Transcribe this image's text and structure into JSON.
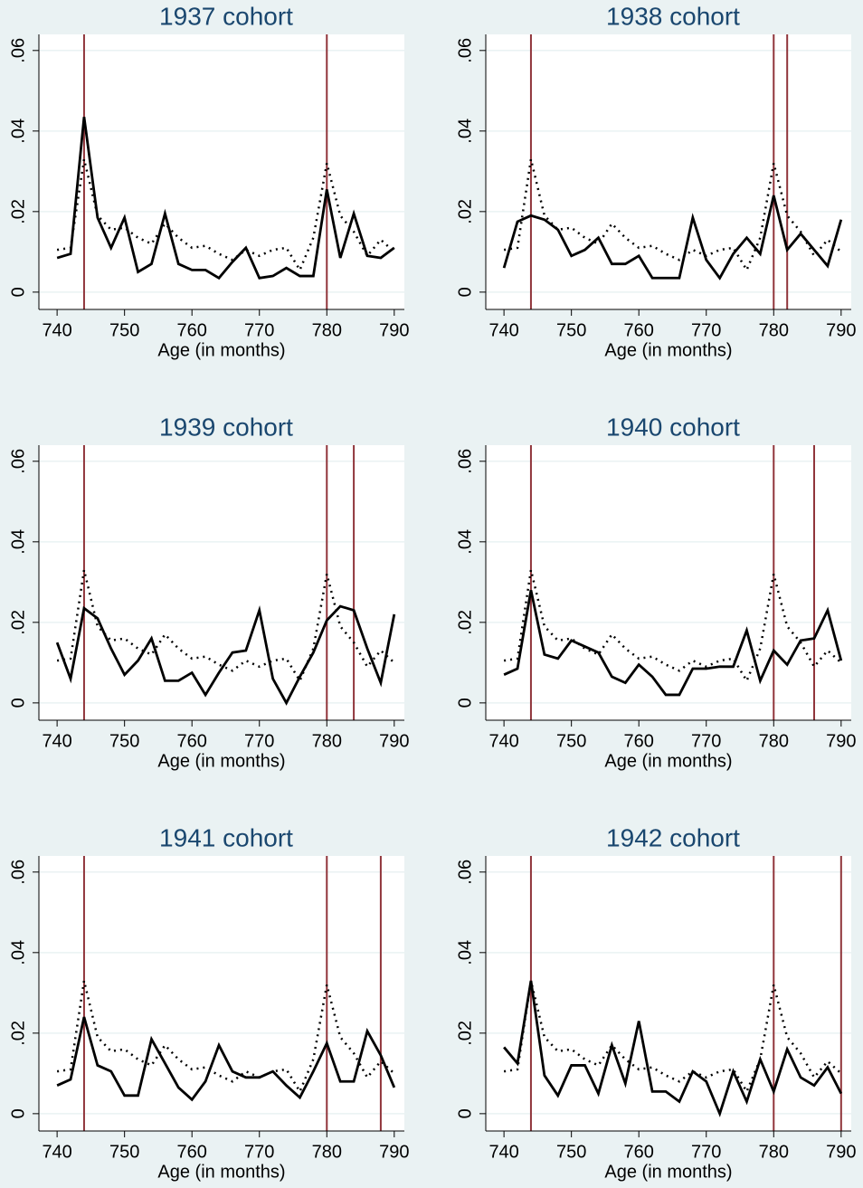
{
  "chart_data": [
    {
      "type": "line",
      "title": "1937 cohort",
      "x_label": "Age (in months)",
      "x": [
        740,
        742,
        744,
        746,
        748,
        750,
        752,
        754,
        756,
        758,
        760,
        762,
        764,
        766,
        768,
        770,
        772,
        774,
        776,
        778,
        780,
        782,
        784,
        786,
        788,
        790
      ],
      "series": [
        {
          "color": "#000000",
          "style": "solid",
          "values": [
            0.0085,
            0.0095,
            0.0435,
            0.0185,
            0.011,
            0.0185,
            0.005,
            0.007,
            0.0195,
            0.007,
            0.0055,
            0.0055,
            0.0035,
            0.0075,
            0.011,
            0.0035,
            0.004,
            0.006,
            0.004,
            0.004,
            0.0255,
            0.0085,
            0.0195,
            0.009,
            0.0085,
            0.011
          ]
        },
        {
          "color": "#000000",
          "style": "dotted",
          "values": [
            0.0105,
            0.011,
            0.033,
            0.019,
            0.0155,
            0.016,
            0.0135,
            0.012,
            0.017,
            0.0135,
            0.011,
            0.0115,
            0.0095,
            0.008,
            0.0105,
            0.009,
            0.0105,
            0.011,
            0.0055,
            0.0135,
            0.032,
            0.019,
            0.015,
            0.009,
            0.013,
            0.01
          ]
        }
      ],
      "vlines": [
        744,
        780
      ],
      "vline_color": "#90353b",
      "xlim": [
        737.3,
        791.5
      ],
      "ylim": [
        -0.0043,
        0.064
      ],
      "xticks": [
        740,
        750,
        760,
        770,
        780,
        790
      ],
      "yticks": [
        0,
        {
          "value": 0.02,
          "label": ".02"
        },
        {
          "value": 0.04,
          "label": ".04"
        },
        {
          "value": 0.06,
          "label": ".06"
        }
      ],
      "grid": true
    },
    {
      "type": "line",
      "title": "1938 cohort",
      "x_label": "Age (in months)",
      "x": [
        740,
        742,
        744,
        746,
        748,
        750,
        752,
        754,
        756,
        758,
        760,
        762,
        764,
        766,
        768,
        770,
        772,
        774,
        776,
        778,
        780,
        782,
        784,
        786,
        788,
        790
      ],
      "series": [
        {
          "color": "#000000",
          "style": "solid",
          "values": [
            0.006,
            0.0175,
            0.019,
            0.018,
            0.0155,
            0.009,
            0.0105,
            0.0135,
            0.007,
            0.007,
            0.009,
            0.0035,
            0.0035,
            0.0035,
            0.0185,
            0.008,
            0.0035,
            0.0095,
            0.0135,
            0.0095,
            0.024,
            0.0105,
            0.0145,
            0.0105,
            0.0065,
            0.018
          ]
        },
        {
          "color": "#000000",
          "style": "dotted",
          "values": [
            0.0105,
            0.011,
            0.033,
            0.019,
            0.0155,
            0.016,
            0.0135,
            0.012,
            0.017,
            0.0135,
            0.011,
            0.0115,
            0.0095,
            0.008,
            0.0105,
            0.009,
            0.0105,
            0.011,
            0.0055,
            0.0135,
            0.032,
            0.019,
            0.015,
            0.009,
            0.013,
            0.01
          ]
        }
      ],
      "vlines": [
        744,
        780,
        782
      ],
      "vline_color": "#90353b",
      "xlim": [
        737.3,
        791.5
      ],
      "ylim": [
        -0.0043,
        0.064
      ],
      "xticks": [
        740,
        750,
        760,
        770,
        780,
        790
      ],
      "yticks": [
        0,
        {
          "value": 0.02,
          "label": ".02"
        },
        {
          "value": 0.04,
          "label": ".04"
        },
        {
          "value": 0.06,
          "label": ".06"
        }
      ],
      "grid": true
    },
    {
      "type": "line",
      "title": "1939 cohort",
      "x_label": "Age (in months)",
      "x": [
        740,
        742,
        744,
        746,
        748,
        750,
        752,
        754,
        756,
        758,
        760,
        762,
        764,
        766,
        768,
        770,
        772,
        774,
        776,
        778,
        780,
        782,
        784,
        786,
        788,
        790
      ],
      "series": [
        {
          "color": "#000000",
          "style": "solid",
          "values": [
            0.015,
            0.006,
            0.0235,
            0.021,
            0.0135,
            0.007,
            0.0105,
            0.016,
            0.0055,
            0.0055,
            0.0075,
            0.002,
            0.0075,
            0.0125,
            0.013,
            0.023,
            0.006,
            0,
            0.0065,
            0.0125,
            0.0205,
            0.024,
            0.023,
            0.0135,
            0.005,
            0.022
          ]
        },
        {
          "color": "#000000",
          "style": "dotted",
          "values": [
            0.0105,
            0.011,
            0.033,
            0.019,
            0.0155,
            0.016,
            0.0135,
            0.012,
            0.017,
            0.0135,
            0.011,
            0.0115,
            0.0095,
            0.008,
            0.0105,
            0.009,
            0.0105,
            0.011,
            0.0055,
            0.0135,
            0.032,
            0.019,
            0.015,
            0.009,
            0.013,
            0.01
          ]
        }
      ],
      "vlines": [
        744,
        780,
        784
      ],
      "vline_color": "#90353b",
      "xlim": [
        737.3,
        791.5
      ],
      "ylim": [
        -0.0043,
        0.064
      ],
      "xticks": [
        740,
        750,
        760,
        770,
        780,
        790
      ],
      "yticks": [
        0,
        {
          "value": 0.02,
          "label": ".02"
        },
        {
          "value": 0.04,
          "label": ".04"
        },
        {
          "value": 0.06,
          "label": ".06"
        }
      ],
      "grid": true
    },
    {
      "type": "line",
      "title": "1940 cohort",
      "x_label": "Age (in months)",
      "x": [
        740,
        742,
        744,
        746,
        748,
        750,
        752,
        754,
        756,
        758,
        760,
        762,
        764,
        766,
        768,
        770,
        772,
        774,
        776,
        778,
        780,
        782,
        784,
        786,
        788,
        790
      ],
      "series": [
        {
          "color": "#000000",
          "style": "solid",
          "values": [
            0.007,
            0.0085,
            0.028,
            0.012,
            0.011,
            0.0155,
            0.014,
            0.0125,
            0.0065,
            0.005,
            0.0095,
            0.0065,
            0.002,
            0.002,
            0.0085,
            0.0085,
            0.009,
            0.009,
            0.018,
            0.0055,
            0.013,
            0.0095,
            0.0155,
            0.016,
            0.023,
            0.0105
          ]
        },
        {
          "color": "#000000",
          "style": "dotted",
          "values": [
            0.0105,
            0.011,
            0.033,
            0.019,
            0.0155,
            0.016,
            0.0135,
            0.012,
            0.017,
            0.0135,
            0.011,
            0.0115,
            0.0095,
            0.008,
            0.0105,
            0.009,
            0.0105,
            0.011,
            0.0055,
            0.0135,
            0.032,
            0.019,
            0.015,
            0.009,
            0.013,
            0.01
          ]
        }
      ],
      "vlines": [
        744,
        780,
        786
      ],
      "vline_color": "#90353b",
      "xlim": [
        737.3,
        791.5
      ],
      "ylim": [
        -0.0043,
        0.064
      ],
      "xticks": [
        740,
        750,
        760,
        770,
        780,
        790
      ],
      "yticks": [
        0,
        {
          "value": 0.02,
          "label": ".02"
        },
        {
          "value": 0.04,
          "label": ".04"
        },
        {
          "value": 0.06,
          "label": ".06"
        }
      ],
      "grid": true
    },
    {
      "type": "line",
      "title": "1941 cohort",
      "x_label": "Age (in months)",
      "x": [
        740,
        742,
        744,
        746,
        748,
        750,
        752,
        754,
        756,
        758,
        760,
        762,
        764,
        766,
        768,
        770,
        772,
        774,
        776,
        778,
        780,
        782,
        784,
        786,
        788,
        790
      ],
      "series": [
        {
          "color": "#000000",
          "style": "solid",
          "values": [
            0.007,
            0.0085,
            0.024,
            0.012,
            0.0105,
            0.0045,
            0.0045,
            0.0185,
            0.0125,
            0.0065,
            0.0035,
            0.008,
            0.017,
            0.0105,
            0.009,
            0.009,
            0.0105,
            0.007,
            0.004,
            0.0105,
            0.0175,
            0.008,
            0.008,
            0.0205,
            0.0145,
            0.0065
          ]
        },
        {
          "color": "#000000",
          "style": "dotted",
          "values": [
            0.0105,
            0.011,
            0.033,
            0.019,
            0.0155,
            0.016,
            0.0135,
            0.012,
            0.017,
            0.0135,
            0.011,
            0.0115,
            0.0095,
            0.008,
            0.0105,
            0.009,
            0.0105,
            0.011,
            0.0055,
            0.0135,
            0.032,
            0.019,
            0.015,
            0.009,
            0.013,
            0.01
          ]
        }
      ],
      "vlines": [
        744,
        780,
        788
      ],
      "vline_color": "#90353b",
      "xlim": [
        737.3,
        791.5
      ],
      "ylim": [
        -0.0043,
        0.064
      ],
      "xticks": [
        740,
        750,
        760,
        770,
        780,
        790
      ],
      "yticks": [
        0,
        {
          "value": 0.02,
          "label": ".02"
        },
        {
          "value": 0.04,
          "label": ".04"
        },
        {
          "value": 0.06,
          "label": ".06"
        }
      ],
      "grid": true
    },
    {
      "type": "line",
      "title": "1942 cohort",
      "x_label": "Age (in months)",
      "x": [
        740,
        742,
        744,
        746,
        748,
        750,
        752,
        754,
        756,
        758,
        760,
        762,
        764,
        766,
        768,
        770,
        772,
        774,
        776,
        778,
        780,
        782,
        784,
        786,
        788,
        790
      ],
      "series": [
        {
          "color": "#000000",
          "style": "solid",
          "values": [
            0.0165,
            0.0125,
            0.033,
            0.0095,
            0.0045,
            0.012,
            0.012,
            0.005,
            0.017,
            0.0075,
            0.023,
            0.0055,
            0.0055,
            0.003,
            0.0105,
            0.008,
            0,
            0.0105,
            0.003,
            0.0135,
            0.0055,
            0.016,
            0.009,
            0.007,
            0.0115,
            0.005
          ]
        },
        {
          "color": "#000000",
          "style": "dotted",
          "values": [
            0.0105,
            0.011,
            0.033,
            0.019,
            0.0155,
            0.016,
            0.0135,
            0.012,
            0.017,
            0.0135,
            0.011,
            0.0115,
            0.0095,
            0.008,
            0.0105,
            0.009,
            0.0105,
            0.011,
            0.0055,
            0.0135,
            0.032,
            0.019,
            0.015,
            0.009,
            0.013,
            0.01
          ]
        }
      ],
      "vlines": [
        744,
        780,
        790
      ],
      "vline_color": "#90353b",
      "xlim": [
        737.3,
        791.5
      ],
      "ylim": [
        -0.0043,
        0.064
      ],
      "xticks": [
        740,
        750,
        760,
        770,
        780,
        790
      ],
      "yticks": [
        0,
        {
          "value": 0.02,
          "label": ".02"
        },
        {
          "value": 0.04,
          "label": ".04"
        },
        {
          "value": 0.06,
          "label": ".06"
        }
      ],
      "grid": true
    }
  ]
}
